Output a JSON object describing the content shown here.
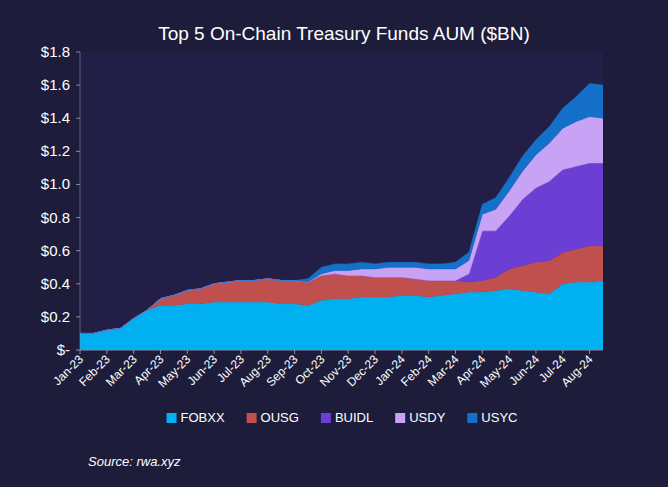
{
  "chart_data": {
    "type": "area",
    "title": "Top 5 On-Chain Treasury Funds AUM ($BN)",
    "source": "Source: rwa.xyz",
    "stacked": true,
    "legend": "bottom",
    "grid": false,
    "categories": [
      "Jan-23",
      null,
      "Feb-23",
      null,
      "Mar-23",
      null,
      "Apr-23",
      null,
      "May-23",
      null,
      "Jun-23",
      null,
      "Jul-23",
      null,
      "Aug-23",
      null,
      "Sep-23",
      null,
      "Oct-23",
      null,
      "Nov-23",
      null,
      "Dec-23",
      null,
      "Jan-24",
      null,
      "Feb-24",
      null,
      "Mar-24",
      null,
      "Apr-24",
      null,
      "May-24",
      null,
      "Jun-24",
      null,
      "Jul-24",
      null,
      "Aug-24",
      null
    ],
    "ylim": [
      0,
      1.8
    ],
    "yticks": [
      {
        "value": 0,
        "label": "$-"
      },
      {
        "value": 0.2,
        "label": "$0.2"
      },
      {
        "value": 0.4,
        "label": "$0.4"
      },
      {
        "value": 0.6,
        "label": "$0.6"
      },
      {
        "value": 0.8,
        "label": "$0.8"
      },
      {
        "value": 1.0,
        "label": "$1.0"
      },
      {
        "value": 1.2,
        "label": "$1.2"
      },
      {
        "value": 1.4,
        "label": "$1.4"
      },
      {
        "value": 1.6,
        "label": "$1.6"
      },
      {
        "value": 1.8,
        "label": "$1.8"
      }
    ],
    "series": [
      {
        "name": "FOBXX",
        "color": "#00b0f0",
        "values": [
          0.1,
          0.1,
          0.12,
          0.13,
          0.19,
          0.24,
          0.27,
          0.27,
          0.28,
          0.28,
          0.29,
          0.29,
          0.29,
          0.29,
          0.29,
          0.28,
          0.28,
          0.27,
          0.3,
          0.31,
          0.31,
          0.32,
          0.32,
          0.32,
          0.33,
          0.33,
          0.32,
          0.33,
          0.34,
          0.35,
          0.35,
          0.36,
          0.37,
          0.36,
          0.35,
          0.34,
          0.4,
          0.41,
          0.41,
          0.42
        ]
      },
      {
        "name": "OUSG",
        "color": "#c0504d",
        "values": [
          0,
          0,
          0,
          0,
          0,
          0,
          0.04,
          0.06,
          0.08,
          0.09,
          0.11,
          0.12,
          0.13,
          0.13,
          0.14,
          0.14,
          0.14,
          0.14,
          0.15,
          0.15,
          0.14,
          0.13,
          0.12,
          0.12,
          0.11,
          0.1,
          0.1,
          0.09,
          0.08,
          0.06,
          0.07,
          0.08,
          0.12,
          0.15,
          0.18,
          0.2,
          0.19,
          0.2,
          0.22,
          0.21
        ]
      },
      {
        "name": "BUIDL",
        "color": "#6b3fd4",
        "values": [
          0,
          0,
          0,
          0,
          0,
          0,
          0,
          0,
          0,
          0,
          0,
          0,
          0,
          0,
          0,
          0,
          0,
          0,
          0,
          0,
          0,
          0,
          0,
          0,
          0,
          0,
          0,
          0,
          0,
          0.05,
          0.3,
          0.28,
          0.32,
          0.4,
          0.45,
          0.48,
          0.5,
          0.5,
          0.5,
          0.5
        ]
      },
      {
        "name": "USDY",
        "color": "#c8a2f5",
        "values": [
          0,
          0,
          0,
          0,
          0,
          0,
          0,
          0,
          0,
          0,
          0,
          0,
          0,
          0,
          0,
          0,
          0,
          0,
          0.01,
          0.02,
          0.03,
          0.04,
          0.05,
          0.06,
          0.06,
          0.07,
          0.07,
          0.07,
          0.07,
          0.08,
          0.1,
          0.13,
          0.15,
          0.17,
          0.2,
          0.23,
          0.25,
          0.27,
          0.28,
          0.27
        ]
      },
      {
        "name": "USYC",
        "color": "#1470c8",
        "values": [
          0,
          0,
          0,
          0,
          0,
          0,
          0,
          0,
          0,
          0,
          0,
          0,
          0,
          0,
          0,
          0,
          0,
          0.02,
          0.04,
          0.04,
          0.04,
          0.04,
          0.03,
          0.03,
          0.03,
          0.03,
          0.03,
          0.03,
          0.04,
          0.05,
          0.06,
          0.07,
          0.08,
          0.09,
          0.09,
          0.1,
          0.12,
          0.15,
          0.2,
          0.2
        ]
      }
    ]
  }
}
